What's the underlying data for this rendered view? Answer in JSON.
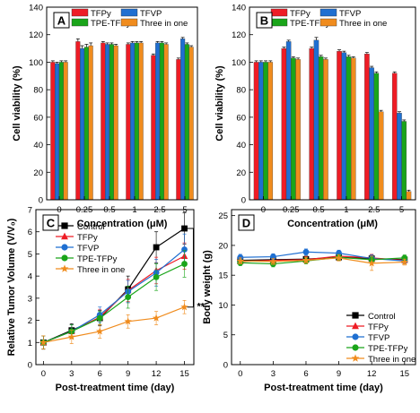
{
  "figure": {
    "background": "#ffffff",
    "colors": {
      "TFPy": "#ee1c25",
      "TFVP": "#1f6fd1",
      "TPE-TFPy": "#1aa51a",
      "Three in one": "#f08c1e",
      "Control": "#000000"
    }
  },
  "chart_data": [
    {
      "panel": "A",
      "type": "bar",
      "xlabel": "Concentration (μM)",
      "ylabel": "Cell viability (%)",
      "ylim": [
        0,
        140
      ],
      "yticks": [
        0,
        20,
        40,
        60,
        80,
        100,
        120,
        140
      ],
      "categories": [
        "0",
        "0.25",
        "0.5",
        "1",
        "2.5",
        "5"
      ],
      "grid": false,
      "legend": "top",
      "series": [
        {
          "name": "TFPy",
          "color": "#ee1c25",
          "values": [
            100,
            115,
            114,
            113,
            105,
            102
          ],
          "errors": [
            1,
            2,
            1,
            1,
            1,
            1
          ]
        },
        {
          "name": "TFVP",
          "color": "#1f6fd1",
          "values": [
            99,
            110,
            113,
            114,
            114,
            117
          ],
          "errors": [
            1,
            2,
            1,
            1,
            1,
            1
          ]
        },
        {
          "name": "TPE-TFPy",
          "color": "#1aa51a",
          "values": [
            100,
            111,
            113,
            114,
            114,
            113
          ],
          "errors": [
            1,
            2,
            1,
            1,
            1,
            1
          ]
        },
        {
          "name": "Three in one",
          "color": "#f08c1e",
          "values": [
            100,
            112,
            112,
            114,
            113,
            111
          ],
          "errors": [
            1,
            2,
            1,
            1,
            1,
            1
          ]
        }
      ]
    },
    {
      "panel": "B",
      "type": "bar",
      "xlabel": "Concentration (μM)",
      "ylabel": "Cell viability (%)",
      "ylim": [
        0,
        140
      ],
      "yticks": [
        0,
        20,
        40,
        60,
        80,
        100,
        120,
        140
      ],
      "categories": [
        "0",
        "0.25",
        "0.5",
        "1",
        "2.5",
        "5"
      ],
      "grid": false,
      "legend": "top",
      "series": [
        {
          "name": "TFPy",
          "color": "#ee1c25",
          "values": [
            100,
            110,
            110,
            108,
            106,
            92
          ],
          "errors": [
            1,
            1,
            1,
            1,
            1,
            1
          ]
        },
        {
          "name": "TFVP",
          "color": "#1f6fd1",
          "values": [
            100,
            115,
            116,
            107,
            96,
            63
          ],
          "errors": [
            1,
            1,
            2,
            1,
            1,
            1
          ]
        },
        {
          "name": "TPE-TFPy",
          "color": "#1aa51a",
          "values": [
            100,
            103,
            104,
            104,
            92,
            57
          ],
          "errors": [
            1,
            1,
            1,
            1,
            1,
            1
          ]
        },
        {
          "name": "Three in one",
          "color": "#f08c1e",
          "values": [
            100,
            102,
            102,
            103,
            64,
            6
          ],
          "errors": [
            1,
            1,
            1,
            1,
            1,
            1
          ]
        }
      ]
    },
    {
      "panel": "C",
      "type": "line",
      "xlabel": "Post-treatment time (day)",
      "ylabel": "Relative Tumor Volume (V/V₀)",
      "xlim": [
        0,
        16
      ],
      "ylim": [
        0,
        7
      ],
      "xticks": [
        0,
        3,
        6,
        9,
        12,
        15
      ],
      "yticks": [
        0,
        1,
        2,
        3,
        4,
        5,
        6,
        7
      ],
      "x": [
        0,
        3,
        6,
        9,
        12,
        15
      ],
      "grid": false,
      "legend": "top-left",
      "significance": "**",
      "series": [
        {
          "name": "Control",
          "color": "#000000",
          "marker": "square",
          "values": [
            1.0,
            1.55,
            2.1,
            3.4,
            5.3,
            6.15
          ],
          "errors": [
            0.3,
            0.3,
            0.35,
            0.6,
            0.7,
            0.7
          ]
        },
        {
          "name": "TFPy",
          "color": "#ee1c25",
          "marker": "triangle",
          "values": [
            1.0,
            1.5,
            2.15,
            3.35,
            4.25,
            4.9
          ],
          "errors": [
            0.3,
            0.3,
            0.35,
            0.5,
            0.6,
            0.6
          ]
        },
        {
          "name": "TFVP",
          "color": "#1f6fd1",
          "marker": "circle",
          "values": [
            1.0,
            1.5,
            2.25,
            3.3,
            4.15,
            5.2
          ],
          "errors": [
            0.3,
            0.3,
            0.35,
            0.5,
            0.6,
            0.7
          ]
        },
        {
          "name": "TPE-TFPy",
          "color": "#1aa51a",
          "marker": "circle",
          "values": [
            1.0,
            1.5,
            2.1,
            3.05,
            3.95,
            4.55
          ],
          "errors": [
            0.3,
            0.3,
            0.3,
            0.5,
            0.6,
            0.6
          ]
        },
        {
          "name": "Three in one",
          "color": "#f08c1e",
          "marker": "star",
          "values": [
            1.0,
            1.25,
            1.5,
            1.95,
            2.1,
            2.6
          ],
          "errors": [
            0.3,
            0.3,
            0.3,
            0.3,
            0.3,
            0.3
          ]
        }
      ]
    },
    {
      "panel": "D",
      "type": "line",
      "xlabel": "Post-treatment time (day)",
      "ylabel": "Body weight (g)",
      "xlim": [
        0,
        16
      ],
      "ylim": [
        0,
        26
      ],
      "xticks": [
        0,
        3,
        6,
        9,
        12,
        15
      ],
      "yticks": [
        0,
        5,
        10,
        15,
        20,
        25
      ],
      "x": [
        0,
        3,
        6,
        9,
        12,
        15
      ],
      "grid": false,
      "legend": "bottom-right",
      "series": [
        {
          "name": "Control",
          "color": "#000000",
          "marker": "square",
          "values": [
            17.5,
            17.6,
            17.7,
            18.0,
            17.8,
            17.6
          ],
          "errors": [
            0.5,
            0.5,
            0.5,
            0.5,
            0.6,
            0.5
          ]
        },
        {
          "name": "TFPy",
          "color": "#ee1c25",
          "marker": "triangle",
          "values": [
            17.3,
            17.5,
            17.6,
            18.2,
            17.9,
            17.5
          ],
          "errors": [
            0.5,
            0.5,
            0.5,
            0.5,
            0.6,
            0.5
          ]
        },
        {
          "name": "TFVP",
          "color": "#1f6fd1",
          "marker": "circle",
          "values": [
            18.0,
            18.1,
            18.9,
            18.7,
            17.8,
            17.4
          ],
          "errors": [
            0.5,
            0.5,
            0.5,
            0.5,
            0.6,
            0.5
          ]
        },
        {
          "name": "TPE-TFPy",
          "color": "#1aa51a",
          "marker": "circle",
          "values": [
            17.1,
            16.9,
            17.4,
            18.0,
            17.6,
            17.9
          ],
          "errors": [
            0.5,
            0.5,
            0.5,
            0.5,
            0.6,
            0.5
          ]
        },
        {
          "name": "Three in one",
          "color": "#f08c1e",
          "marker": "star",
          "values": [
            17.4,
            17.3,
            17.5,
            17.9,
            17.0,
            17.2
          ],
          "errors": [
            0.5,
            0.5,
            0.5,
            0.5,
            1.2,
            0.5
          ]
        }
      ]
    }
  ]
}
